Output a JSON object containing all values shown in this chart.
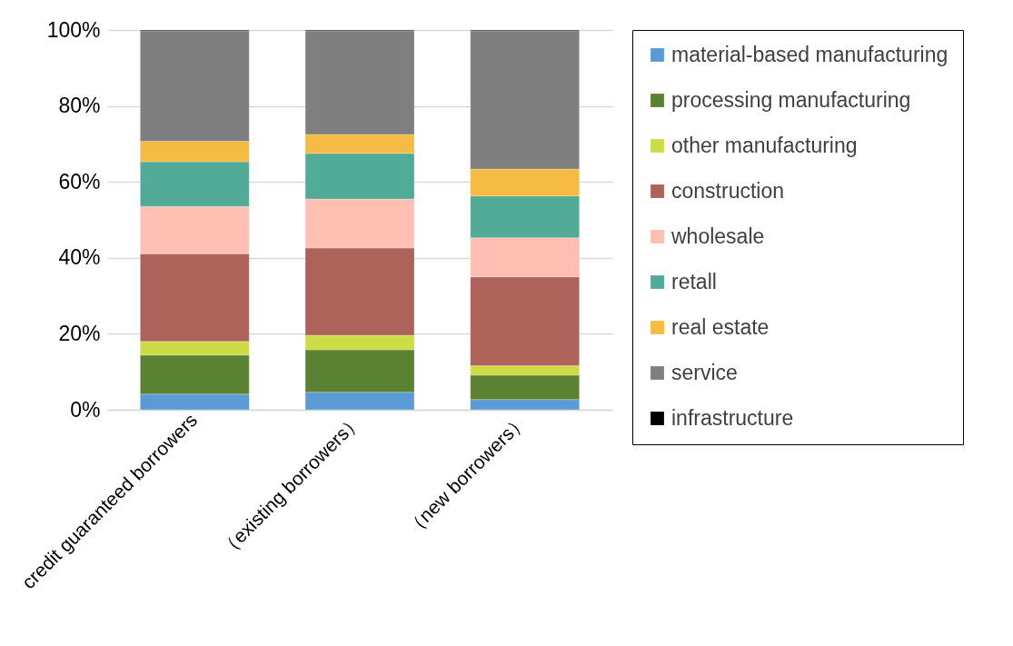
{
  "chart_data": {
    "type": "bar",
    "stacked": true,
    "categories": [
      "credit guaranteed borrowers",
      "（existing borrowers）",
      "（new borrowers）"
    ],
    "series": [
      {
        "name": "material-based manufacturing",
        "color": "#5b9bd5",
        "values": [
          4.1,
          4.6,
          2.7
        ]
      },
      {
        "name": "processing manufacturing",
        "color": "#5b8233",
        "values": [
          10.3,
          11.2,
          6.4
        ]
      },
      {
        "name": "other manufacturing",
        "color": "#cddc45",
        "values": [
          3.6,
          3.8,
          2.5
        ]
      },
      {
        "name": "construction",
        "color": "#ad625a",
        "values": [
          23.1,
          23.0,
          23.4
        ]
      },
      {
        "name": "wholesale",
        "color": "#ffc0b3",
        "values": [
          12.4,
          12.9,
          10.3
        ]
      },
      {
        "name": "retall",
        "color": "#52ab97",
        "values": [
          11.8,
          12.0,
          11.0
        ]
      },
      {
        "name": "real estate",
        "color": "#f6bb43",
        "values": [
          5.4,
          5.0,
          7.1
        ]
      },
      {
        "name": "service",
        "color": "#7f7f7f",
        "values": [
          29.1,
          27.3,
          36.4
        ]
      },
      {
        "name": "infrastructure",
        "color": "#000000",
        "values": [
          0.2,
          0.2,
          0.2
        ]
      }
    ],
    "ylim": [
      0,
      100
    ],
    "yticks": [
      {
        "value": 0,
        "label": "0%"
      },
      {
        "value": 20,
        "label": "20%"
      },
      {
        "value": 40,
        "label": "40%"
      },
      {
        "value": 60,
        "label": "60%"
      },
      {
        "value": 80,
        "label": "80%"
      },
      {
        "value": 100,
        "label": "100%"
      }
    ],
    "grid": "y",
    "legend": "right"
  }
}
